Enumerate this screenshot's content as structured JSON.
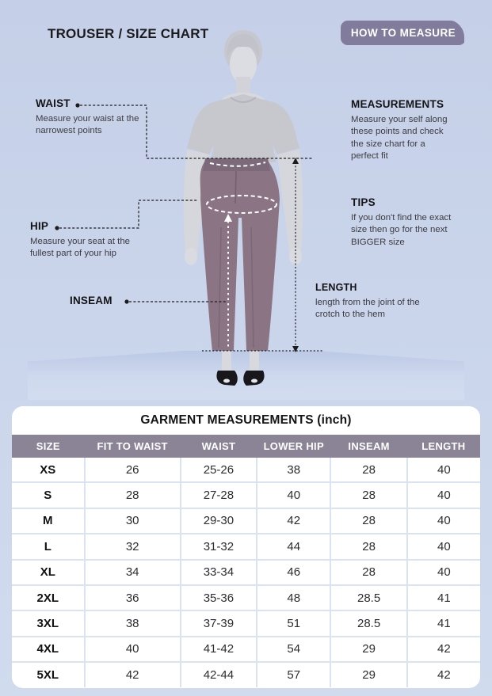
{
  "page": {
    "title": "TROUSER / SIZE CHART",
    "badge": "HOW TO MEASURE"
  },
  "annotations": {
    "waist": {
      "label": "WAIST",
      "desc": "Measure your waist at the narrowest points"
    },
    "hip": {
      "label": "HIP",
      "desc": "Measure your seat at the fullest part of your hip"
    },
    "inseam": {
      "label": "INSEAM",
      "desc": ""
    },
    "measurements": {
      "label": "MEASUREMENTS",
      "desc": "Measure your self along these points and check the size chart for a perfect fit"
    },
    "tips": {
      "label": "TIPS",
      "desc": "If you don't find the exact size then go for the next BIGGER size"
    },
    "length": {
      "label": "LENGTH",
      "desc": "length from the joint of the crotch to the hem"
    }
  },
  "table": {
    "title": "GARMENT MEASUREMENTS (inch)",
    "columns": [
      "SIZE",
      "FIT TO WAIST",
      "WAIST",
      "LOWER HIP",
      "INSEAM",
      "LENGTH"
    ],
    "rows": [
      [
        "XS",
        "26",
        "25-26",
        "38",
        "28",
        "40"
      ],
      [
        "S",
        "28",
        "27-28",
        "40",
        "28",
        "40"
      ],
      [
        "M",
        "30",
        "29-30",
        "42",
        "28",
        "40"
      ],
      [
        "L",
        "32",
        "31-32",
        "44",
        "28",
        "40"
      ],
      [
        "XL",
        "34",
        "33-34",
        "46",
        "28",
        "40"
      ],
      [
        "2XL",
        "36",
        "35-36",
        "48",
        "28.5",
        "41"
      ],
      [
        "3XL",
        "38",
        "37-39",
        "51",
        "28.5",
        "41"
      ],
      [
        "4XL",
        "40",
        "41-42",
        "54",
        "29",
        "42"
      ],
      [
        "5XL",
        "42",
        "42-44",
        "57",
        "29",
        "42"
      ]
    ]
  },
  "colors": {
    "badge_purple": "#817b9c",
    "table_header_purple": "#8b8497",
    "background_periwinkle": "#c9d4ea",
    "trouser_mauve": "#8b7484",
    "tshirt_gray": "#c7c8cd",
    "table_border": "#d9e3f1"
  }
}
